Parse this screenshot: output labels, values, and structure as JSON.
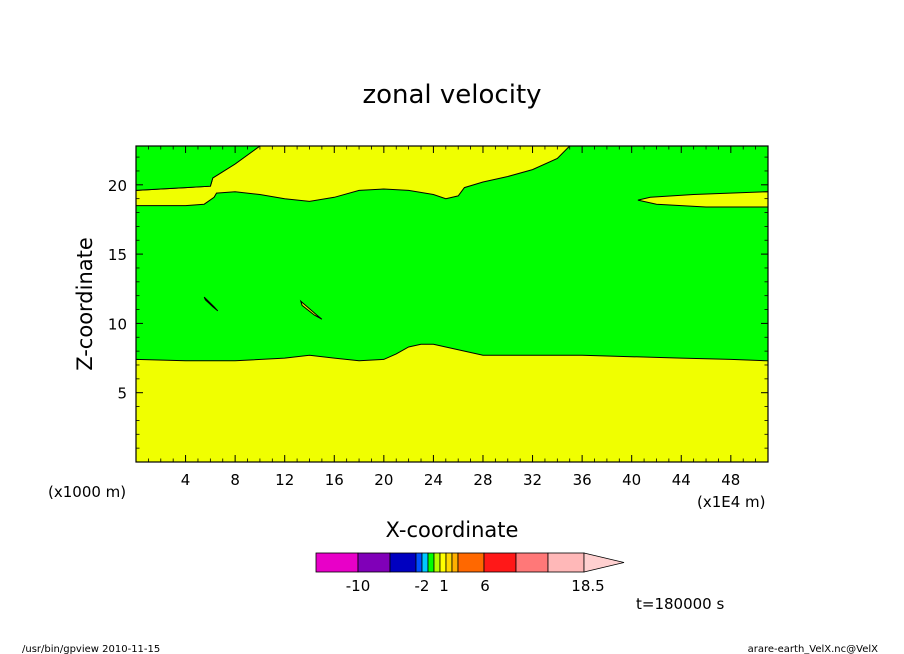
{
  "chart_data": {
    "type": "heatmap",
    "title": "zonal velocity",
    "xlabel": "X-coordinate",
    "ylabel": "Z-coordinate",
    "x_scale_note": "(x1E4 m)",
    "y_scale_note": "(x1000 m)",
    "xlim": [
      0,
      51
    ],
    "ylim": [
      0,
      22.8
    ],
    "x_ticks": [
      4,
      8,
      12,
      16,
      20,
      24,
      28,
      32,
      36,
      40,
      44,
      48
    ],
    "y_ticks": [
      5,
      10,
      15,
      20
    ],
    "colorbar": {
      "ticks": [
        "-10",
        "-2",
        "1",
        "6",
        "18.5"
      ],
      "colors": [
        "#e800c8",
        "#8000b8",
        "#0000c0",
        "#0050ff",
        "#00c8ff",
        "#00ff00",
        "#b4ff00",
        "#ffff00",
        "#ffd800",
        "#ffb000",
        "#ff6800",
        "#ff1818",
        "#ff7878",
        "#ffb8b8",
        "#ffd0d0"
      ]
    },
    "fill_colors": {
      "low": "#f0ff00",
      "high": "#00ff00"
    },
    "regions": [
      {
        "color": "#f0ff00",
        "description": "lower layer",
        "top_boundary": [
          [
            0,
            7.4
          ],
          [
            4,
            7.3
          ],
          [
            8,
            7.3
          ],
          [
            12,
            7.5
          ],
          [
            14,
            7.7
          ],
          [
            16,
            7.5
          ],
          [
            18,
            7.3
          ],
          [
            20,
            7.4
          ],
          [
            21,
            7.8
          ],
          [
            22,
            8.3
          ],
          [
            23,
            8.5
          ],
          [
            24,
            8.5
          ],
          [
            26,
            8.1
          ],
          [
            28,
            7.7
          ],
          [
            32,
            7.7
          ],
          [
            36,
            7.7
          ],
          [
            40,
            7.6
          ],
          [
            44,
            7.5
          ],
          [
            48,
            7.4
          ],
          [
            51,
            7.3
          ]
        ]
      },
      {
        "color": "#f0ff00",
        "description": "upper band",
        "lower_boundary": [
          [
            0,
            18.5
          ],
          [
            4,
            18.5
          ],
          [
            5.5,
            18.6
          ],
          [
            6.3,
            19.1
          ],
          [
            6.5,
            19.4
          ],
          [
            8,
            19.5
          ],
          [
            10,
            19.3
          ],
          [
            12,
            19.0
          ],
          [
            14,
            18.8
          ],
          [
            16,
            19.1
          ],
          [
            18,
            19.6
          ],
          [
            20,
            19.7
          ],
          [
            22,
            19.6
          ],
          [
            24,
            19.3
          ],
          [
            25,
            19.0
          ],
          [
            26,
            19.2
          ],
          [
            26.5,
            19.8
          ],
          [
            28,
            20.2
          ],
          [
            30,
            20.6
          ],
          [
            32,
            21.1
          ],
          [
            34,
            21.9
          ],
          [
            35,
            22.8
          ]
        ],
        "upper_boundary": [
          [
            0,
            19.6
          ],
          [
            4,
            19.8
          ],
          [
            6,
            19.9
          ],
          [
            6.2,
            20.5
          ],
          [
            8,
            21.5
          ],
          [
            10,
            22.8
          ]
        ]
      },
      {
        "color": "#f0ff00",
        "description": "right tongue",
        "boundary": [
          [
            51,
            18.4
          ],
          [
            46,
            18.4
          ],
          [
            42,
            18.6
          ],
          [
            40.5,
            18.9
          ],
          [
            41.5,
            19.1
          ],
          [
            45,
            19.3
          ],
          [
            51,
            19.5
          ]
        ]
      },
      {
        "color": "#f0ff00",
        "description": "small patch",
        "boundary": [
          [
            5.5,
            11.9
          ],
          [
            6.3,
            11.2
          ],
          [
            6.6,
            10.9
          ],
          [
            6.2,
            11.2
          ],
          [
            5.6,
            11.7
          ]
        ]
      },
      {
        "color": "#f0ff00",
        "description": "small patch",
        "boundary": [
          [
            13.3,
            11.6
          ],
          [
            14.6,
            10.6
          ],
          [
            15.0,
            10.3
          ],
          [
            14.4,
            10.6
          ],
          [
            13.4,
            11.3
          ]
        ]
      }
    ]
  },
  "time_label": "t=180000 s",
  "footer": {
    "left": "/usr/bin/gpview   2010-11-15",
    "right": "arare-earth_VelX.nc@VelX"
  }
}
